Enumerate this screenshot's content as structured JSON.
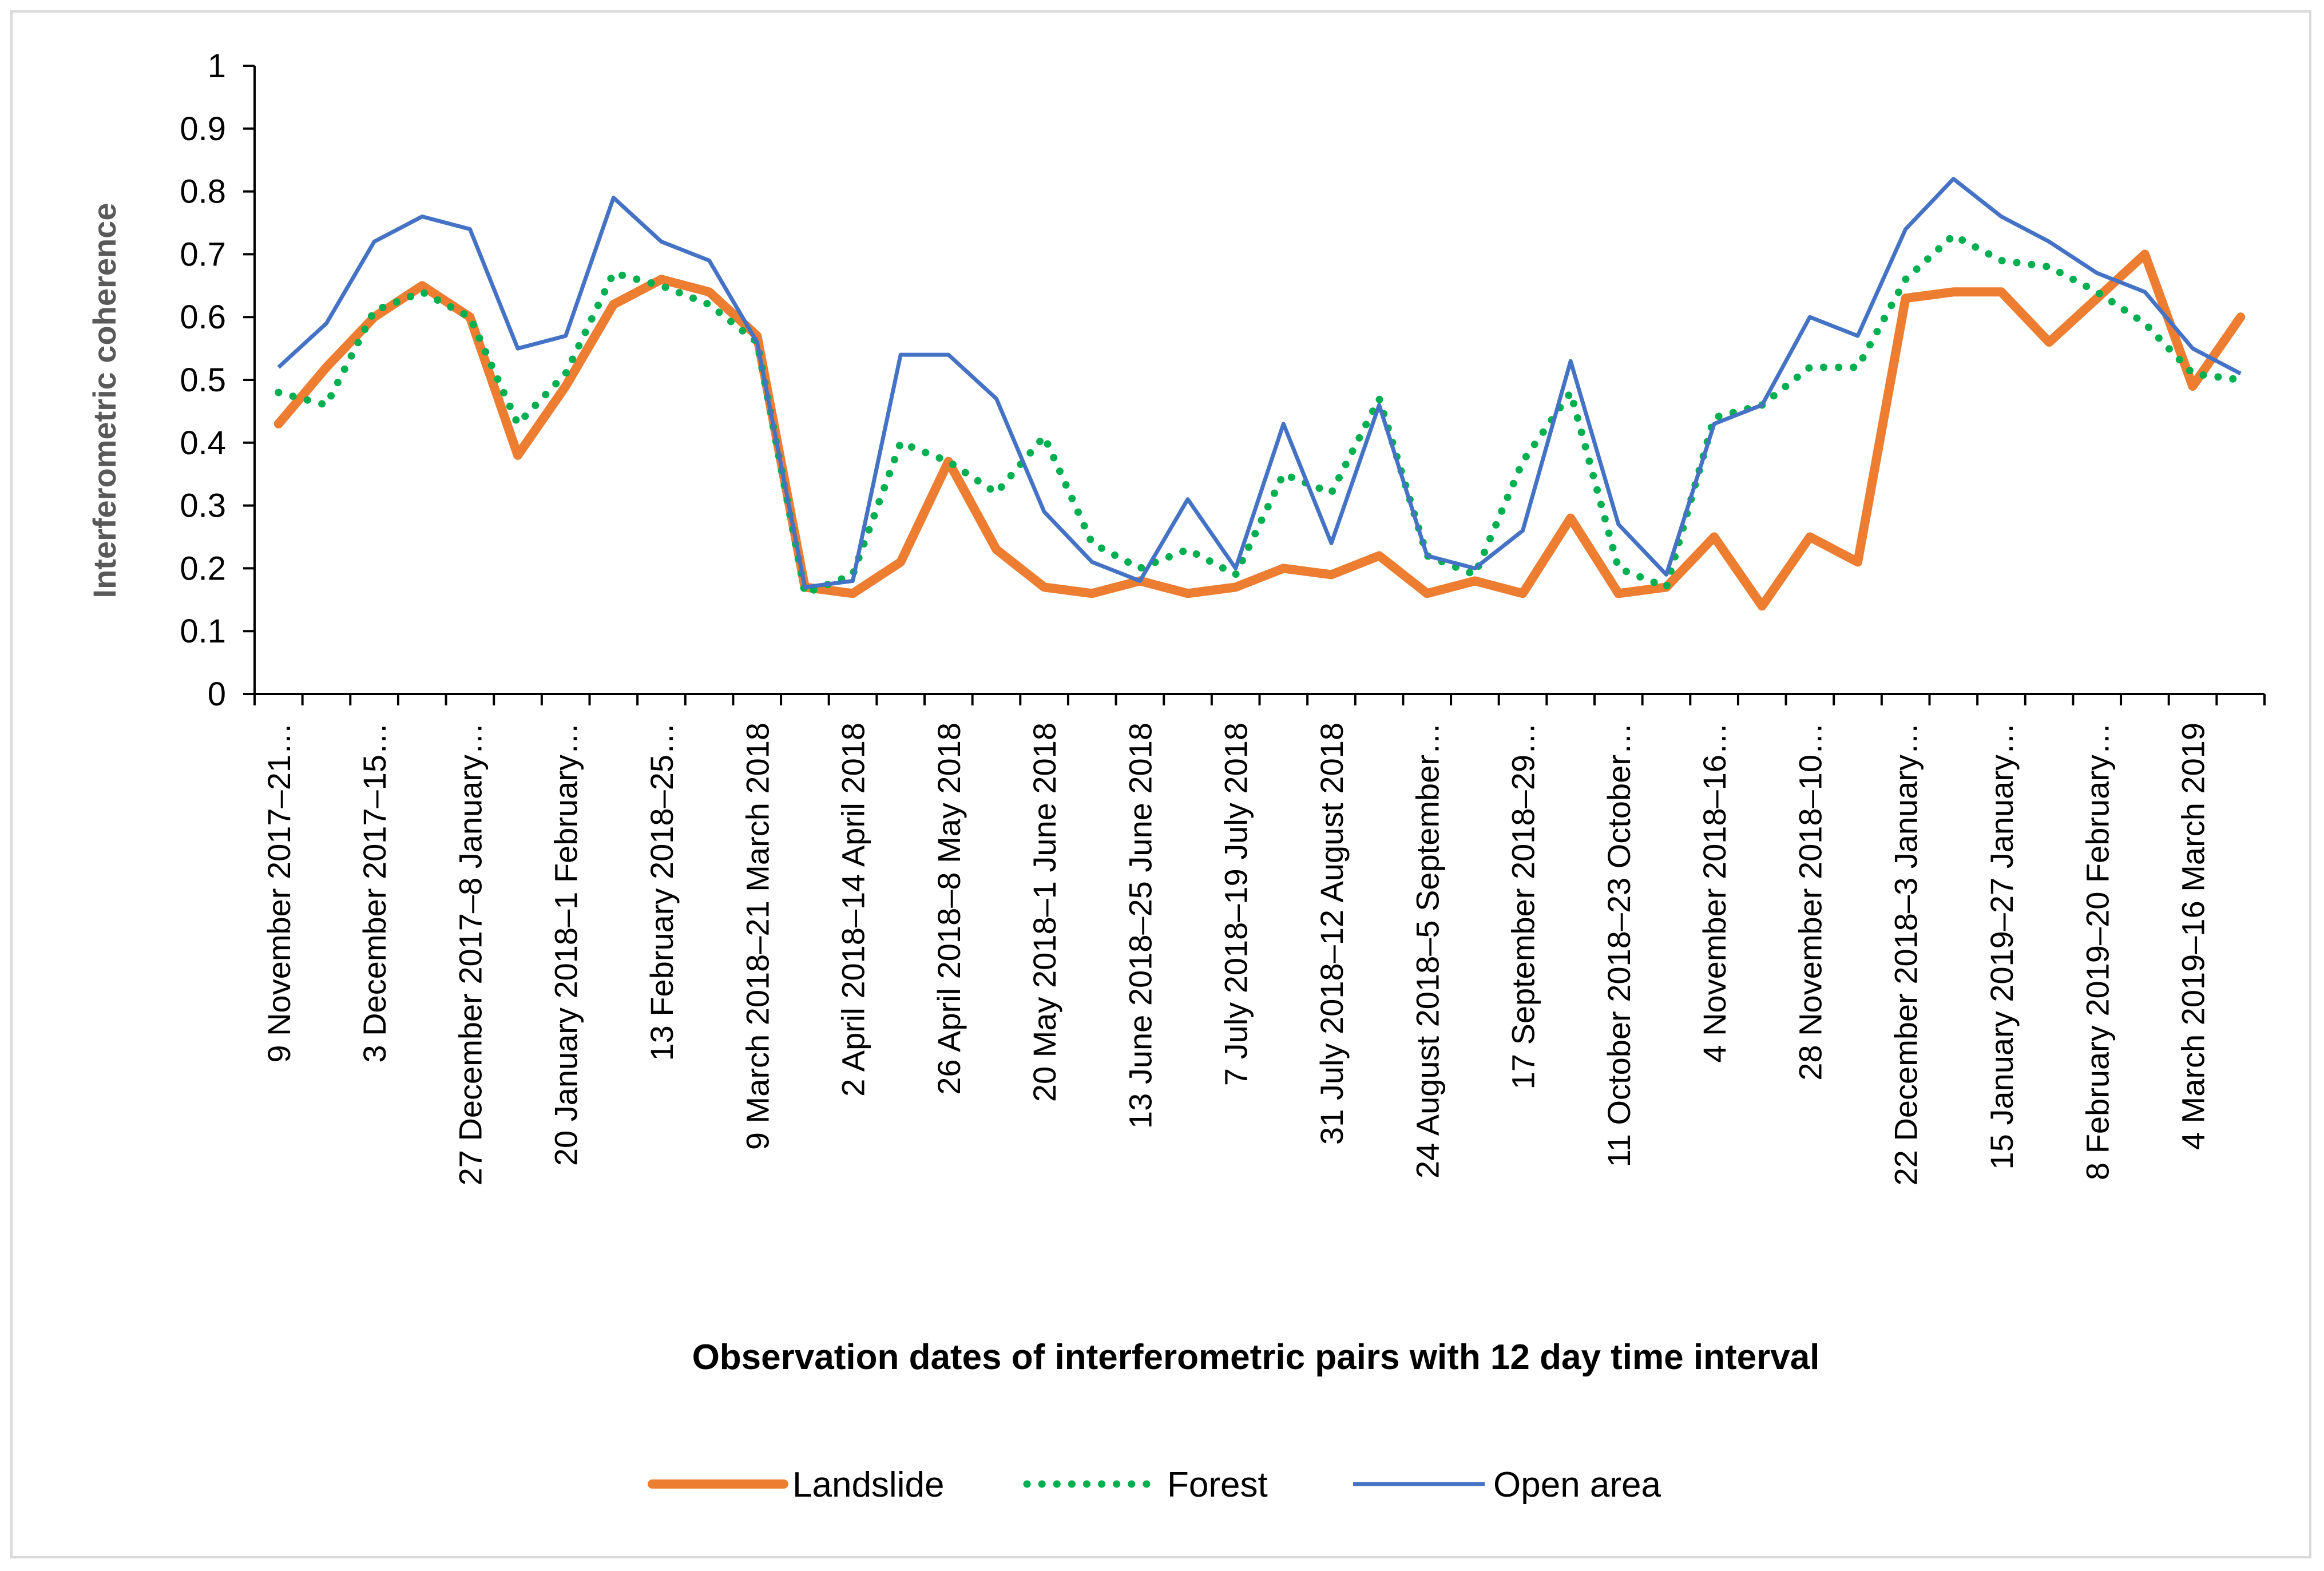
{
  "chart_data": {
    "type": "line",
    "title": "",
    "xlabel": "Observation dates of interferometric pairs with 12 day time interval",
    "ylabel": "Interferometric coherence",
    "ylim": [
      0,
      1
    ],
    "yticks": [
      "0",
      "0.1",
      "0.2",
      "0.3",
      "0.4",
      "0.5",
      "0.6",
      "0.7",
      "0.8",
      "0.9",
      "1"
    ],
    "legend_position": "bottom",
    "categories": [
      "9 November 2017–21…",
      "",
      "3 December 2017–15…",
      "",
      "27 December 2017–8 January…",
      "",
      "20 January 2018–1 February…",
      "",
      "13 February 2018–25…",
      "",
      "9 March 2018–21 March 2018",
      "",
      "2 April 2018–14 April 2018",
      "",
      "26 April 2018–8 May 2018",
      "",
      "20 May 2018–1 June 2018",
      "",
      "13 June 2018–25 June 2018",
      "",
      "7 July 2018–19 July 2018",
      "",
      "31 July 2018–12 August 2018",
      "",
      "24 August 2018–5 September…",
      "",
      "17 September 2018–29…",
      "",
      "11 October 2018–23 October…",
      "",
      "4 November 2018–16…",
      "",
      "28 November 2018–10…",
      "",
      "22 December 2018–3 January…",
      "",
      "15 January 2019–27 January…",
      "",
      "8 February 2019–20 February…",
      "",
      "4 March 2019–16 March 2019",
      ""
    ],
    "series": [
      {
        "name": "Landslide",
        "color": "#ED7D31",
        "style": "solid-thick",
        "values": [
          0.43,
          0.52,
          0.6,
          0.65,
          0.6,
          0.38,
          0.49,
          0.62,
          0.66,
          0.64,
          0.57,
          0.17,
          0.16,
          0.21,
          0.37,
          0.23,
          0.17,
          0.16,
          0.18,
          0.16,
          0.17,
          0.2,
          0.19,
          0.22,
          0.16,
          0.18,
          0.16,
          0.28,
          0.16,
          0.17,
          0.25,
          0.14,
          0.25,
          0.21,
          0.63,
          0.64,
          0.64,
          0.56,
          0.63,
          0.7,
          0.49,
          0.6
        ]
      },
      {
        "name": "Forest",
        "color": "#00B050",
        "style": "dotted",
        "values": [
          0.48,
          0.46,
          0.61,
          0.64,
          0.6,
          0.43,
          0.51,
          0.67,
          0.65,
          0.62,
          0.56,
          0.16,
          0.19,
          0.4,
          0.37,
          0.32,
          0.41,
          0.24,
          0.2,
          0.23,
          0.19,
          0.35,
          0.32,
          0.47,
          0.22,
          0.19,
          0.37,
          0.48,
          0.2,
          0.17,
          0.44,
          0.46,
          0.52,
          0.52,
          0.66,
          0.73,
          0.69,
          0.68,
          0.64,
          0.59,
          0.51,
          0.5
        ]
      },
      {
        "name": "Open area",
        "color": "#4472C4",
        "style": "solid-thin",
        "values": [
          0.52,
          0.59,
          0.72,
          0.76,
          0.74,
          0.55,
          0.57,
          0.79,
          0.72,
          0.69,
          0.56,
          0.17,
          0.18,
          0.54,
          0.54,
          0.47,
          0.29,
          0.21,
          0.18,
          0.31,
          0.2,
          0.43,
          0.24,
          0.46,
          0.22,
          0.2,
          0.26,
          0.53,
          0.27,
          0.19,
          0.43,
          0.46,
          0.6,
          0.57,
          0.74,
          0.82,
          0.76,
          0.72,
          0.67,
          0.64,
          0.55,
          0.51
        ]
      }
    ]
  }
}
